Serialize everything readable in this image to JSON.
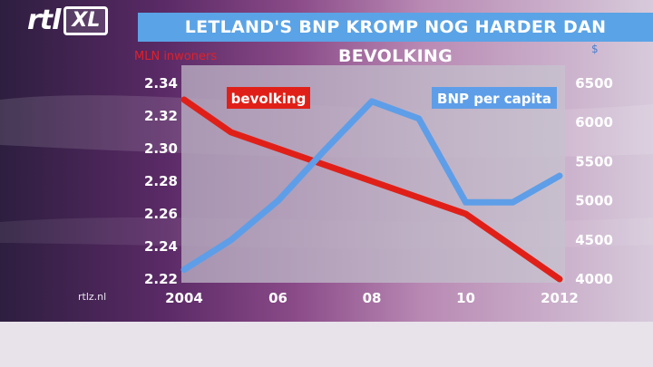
{
  "brand": {
    "logo_rtl": "rtl",
    "logo_xl": "XL",
    "watermark": "rtlz.nl"
  },
  "colors": {
    "title_bar": "#5aa3e6",
    "population_line": "#e02018",
    "gdp_line": "#5e9ee8",
    "plot_bg": "#b9b3c3"
  },
  "chart_data": {
    "type": "line",
    "title": "LETLAND'S BNP KROMP NOG HARDER DAN BEVOLKING",
    "x": [
      2004,
      2005,
      2006,
      2007,
      2008,
      2009,
      2010,
      2011,
      2012
    ],
    "x_tick_values": [
      2004,
      2006,
      2008,
      2010,
      2012
    ],
    "x_tick_labels": [
      "2004",
      "06",
      "08",
      "10",
      "2012"
    ],
    "xlim": [
      2004,
      2012
    ],
    "y_left": {
      "label": "MLN inwoners",
      "ylim": [
        2.22,
        2.34
      ],
      "ticks": [
        "2.34",
        "2.32",
        "2.30",
        "2.28",
        "2.26",
        "2.24",
        "2.22"
      ]
    },
    "y_right": {
      "label": "$",
      "ylim": [
        4000,
        6500
      ],
      "ticks": [
        "6500",
        "6000",
        "5500",
        "5000",
        "4500",
        "4000"
      ]
    },
    "series": [
      {
        "name": "bevolking",
        "axis": "left",
        "color": "#e02018",
        "values": [
          2.33,
          2.31,
          2.3,
          2.29,
          2.28,
          2.27,
          2.26,
          2.24,
          2.22
        ]
      },
      {
        "name": "BNP per capita",
        "axis": "right",
        "color": "#5e9ee8",
        "values": [
          4120,
          4500,
          5000,
          5650,
          6270,
          6050,
          4980,
          4980,
          5320
        ]
      }
    ]
  }
}
